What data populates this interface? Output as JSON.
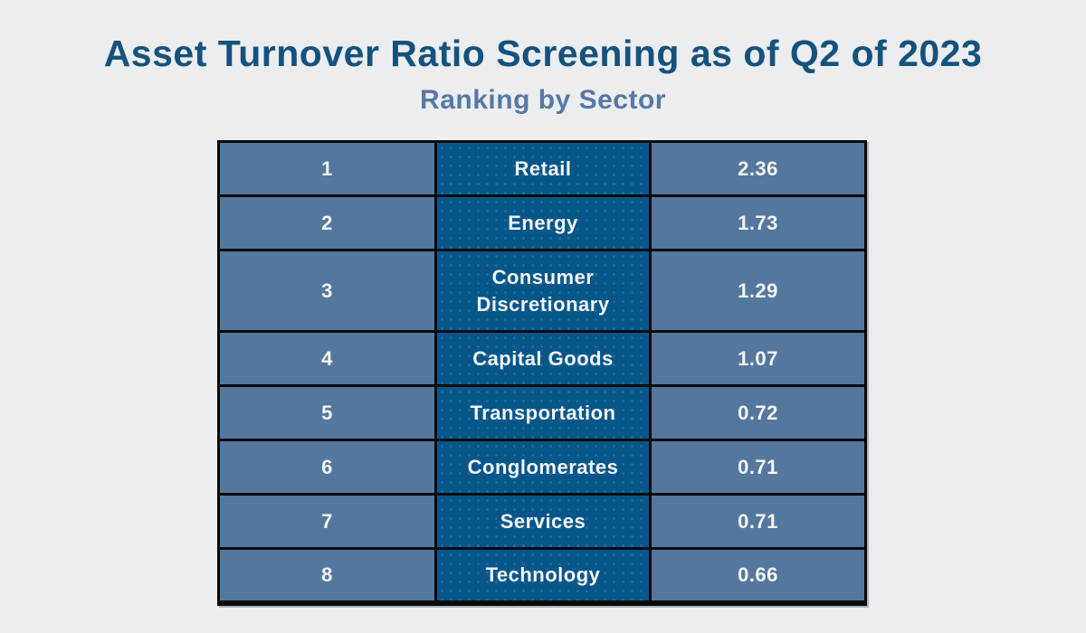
{
  "header": {
    "title": "Asset Turnover Ratio Screening as of Q2 of 2023",
    "subtitle": "Ranking by Sector"
  },
  "table": {
    "rows": [
      {
        "rank": "1",
        "sector": "Retail",
        "ratio": "2.36"
      },
      {
        "rank": "2",
        "sector": "Energy",
        "ratio": "1.73"
      },
      {
        "rank": "3",
        "sector": "Consumer Discretionary",
        "ratio": "1.29"
      },
      {
        "rank": "4",
        "sector": "Capital Goods",
        "ratio": "1.07"
      },
      {
        "rank": "5",
        "sector": "Transportation",
        "ratio": "0.72"
      },
      {
        "rank": "6",
        "sector": "Conglomerates",
        "ratio": "0.71"
      },
      {
        "rank": "7",
        "sector": "Services",
        "ratio": "0.71"
      },
      {
        "rank": "8",
        "sector": "Technology",
        "ratio": "0.66"
      }
    ]
  },
  "colors": {
    "background": "#ECEDEF",
    "title": "#14527E",
    "subtitle": "#5579A4",
    "cell_slate": "#54779E",
    "cell_dark": "#06568A",
    "border": "#0A0A0A",
    "cell_text": "#F4F5F6"
  },
  "chart_data": {
    "type": "table",
    "title": "Asset Turnover Ratio Screening as of Q2 of 2023",
    "subtitle": "Ranking by Sector",
    "columns": [
      "rank",
      "sector",
      "asset_turnover_ratio"
    ],
    "rows": [
      [
        1,
        "Retail",
        2.36
      ],
      [
        2,
        "Energy",
        1.73
      ],
      [
        3,
        "Consumer Discretionary",
        1.29
      ],
      [
        4,
        "Capital Goods",
        1.07
      ],
      [
        5,
        "Transportation",
        0.72
      ],
      [
        6,
        "Conglomerates",
        0.71
      ],
      [
        7,
        "Services",
        0.71
      ],
      [
        8,
        "Technology",
        0.66
      ]
    ],
    "layout": {
      "header_row": false,
      "grid": true,
      "legend": "none"
    }
  }
}
